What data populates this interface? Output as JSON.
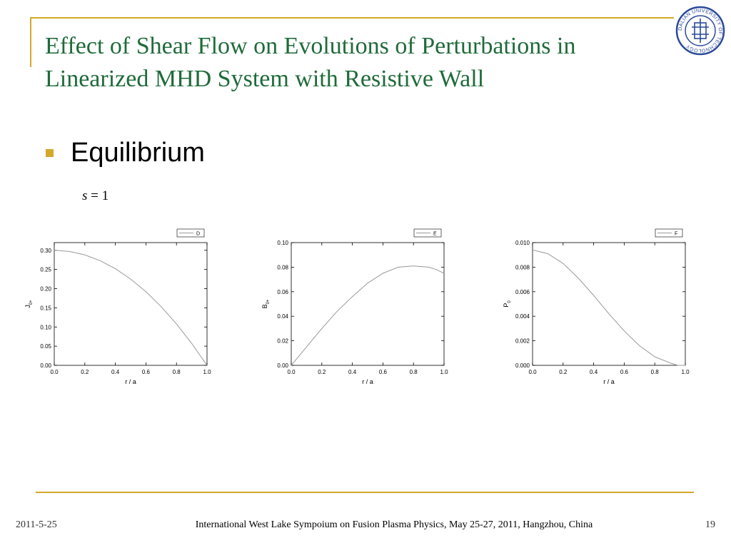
{
  "slide": {
    "title": "Effect of Shear Flow on Evolutions of Perturbations in Linearized MHD System with Resistive Wall",
    "bullet": "Equilibrium",
    "equation": {
      "variable": "s",
      "rhs": "= 1"
    },
    "logo": {
      "name": "university-seal",
      "text": "DALIAN UNIVERSITY OF TECHNOLOGY"
    },
    "accent_color": "#d4a82a",
    "title_color": "#1f6b3a"
  },
  "footer": {
    "date": "2011-5-25",
    "center": "International West Lake Sympoium on Fusion Plasma Physics, May 25-27, 2011, Hangzhou, China",
    "page": "19"
  },
  "chart_data": [
    {
      "type": "line",
      "legend": "D",
      "legend_position": "top-right",
      "xlabel": "r / a",
      "ylabel": {
        "main": "J",
        "sub": "0+"
      },
      "xlim": [
        0.0,
        1.0
      ],
      "ylim": [
        0.0,
        0.32
      ],
      "xticks": [
        "0.0",
        "0.2",
        "0.4",
        "0.6",
        "0.8",
        "1.0"
      ],
      "yticks": [
        {
          "v": 0.0,
          "t": "0.00"
        },
        {
          "v": 0.05,
          "t": "0.05"
        },
        {
          "v": 0.1,
          "t": "0.10"
        },
        {
          "v": 0.15,
          "t": "0.15"
        },
        {
          "v": 0.2,
          "t": "0.20"
        },
        {
          "v": 0.25,
          "t": "0.25"
        },
        {
          "v": 0.3,
          "t": "0.30"
        }
      ],
      "x": [
        0.0,
        0.1,
        0.2,
        0.3,
        0.4,
        0.5,
        0.6,
        0.7,
        0.8,
        0.9,
        1.0
      ],
      "y": [
        0.3,
        0.297,
        0.288,
        0.273,
        0.252,
        0.225,
        0.192,
        0.153,
        0.108,
        0.057,
        0.0
      ],
      "grid": false
    },
    {
      "type": "line",
      "legend": "E",
      "legend_position": "top-right",
      "xlabel": "r / a",
      "ylabel": {
        "main": "B",
        "sub": "0+"
      },
      "xlim": [
        0.0,
        1.0
      ],
      "ylim": [
        0.0,
        0.1
      ],
      "xticks": [
        "0.0",
        "0.2",
        "0.4",
        "0.6",
        "0.8",
        "1.0"
      ],
      "yticks": [
        {
          "v": 0.0,
          "t": "0.00"
        },
        {
          "v": 0.02,
          "t": "0.02"
        },
        {
          "v": 0.04,
          "t": "0.04"
        },
        {
          "v": 0.06,
          "t": "0.06"
        },
        {
          "v": 0.08,
          "t": "0.08"
        },
        {
          "v": 0.1,
          "t": "0.10"
        }
      ],
      "x": [
        0.0,
        0.1,
        0.2,
        0.3,
        0.4,
        0.5,
        0.6,
        0.7,
        0.8,
        0.9,
        0.95,
        1.0
      ],
      "y": [
        0.0,
        0.015,
        0.03,
        0.044,
        0.056,
        0.067,
        0.075,
        0.08,
        0.081,
        0.08,
        0.078,
        0.075
      ],
      "grid": false
    },
    {
      "type": "line",
      "legend": "F",
      "legend_position": "top-right",
      "xlabel": "r / a",
      "ylabel": {
        "main": "P",
        "sub": "0"
      },
      "xlim": [
        0.0,
        1.0
      ],
      "ylim": [
        0.0,
        0.01
      ],
      "xticks": [
        "0.0",
        "0.2",
        "0.4",
        "0.6",
        "0.8",
        "1.0"
      ],
      "yticks": [
        {
          "v": 0.0,
          "t": "0.000"
        },
        {
          "v": 0.002,
          "t": "0.002"
        },
        {
          "v": 0.004,
          "t": "0.004"
        },
        {
          "v": 0.006,
          "t": "0.006"
        },
        {
          "v": 0.008,
          "t": "0.008"
        },
        {
          "v": 0.01,
          "t": "0.010"
        }
      ],
      "x": [
        0.0,
        0.1,
        0.2,
        0.3,
        0.4,
        0.5,
        0.6,
        0.7,
        0.8,
        0.9,
        0.95,
        1.0
      ],
      "y": [
        0.0094,
        0.0091,
        0.0083,
        0.0071,
        0.0057,
        0.0042,
        0.0028,
        0.0016,
        0.0007,
        0.0002,
        0.0,
        0.0
      ],
      "grid": false
    }
  ]
}
